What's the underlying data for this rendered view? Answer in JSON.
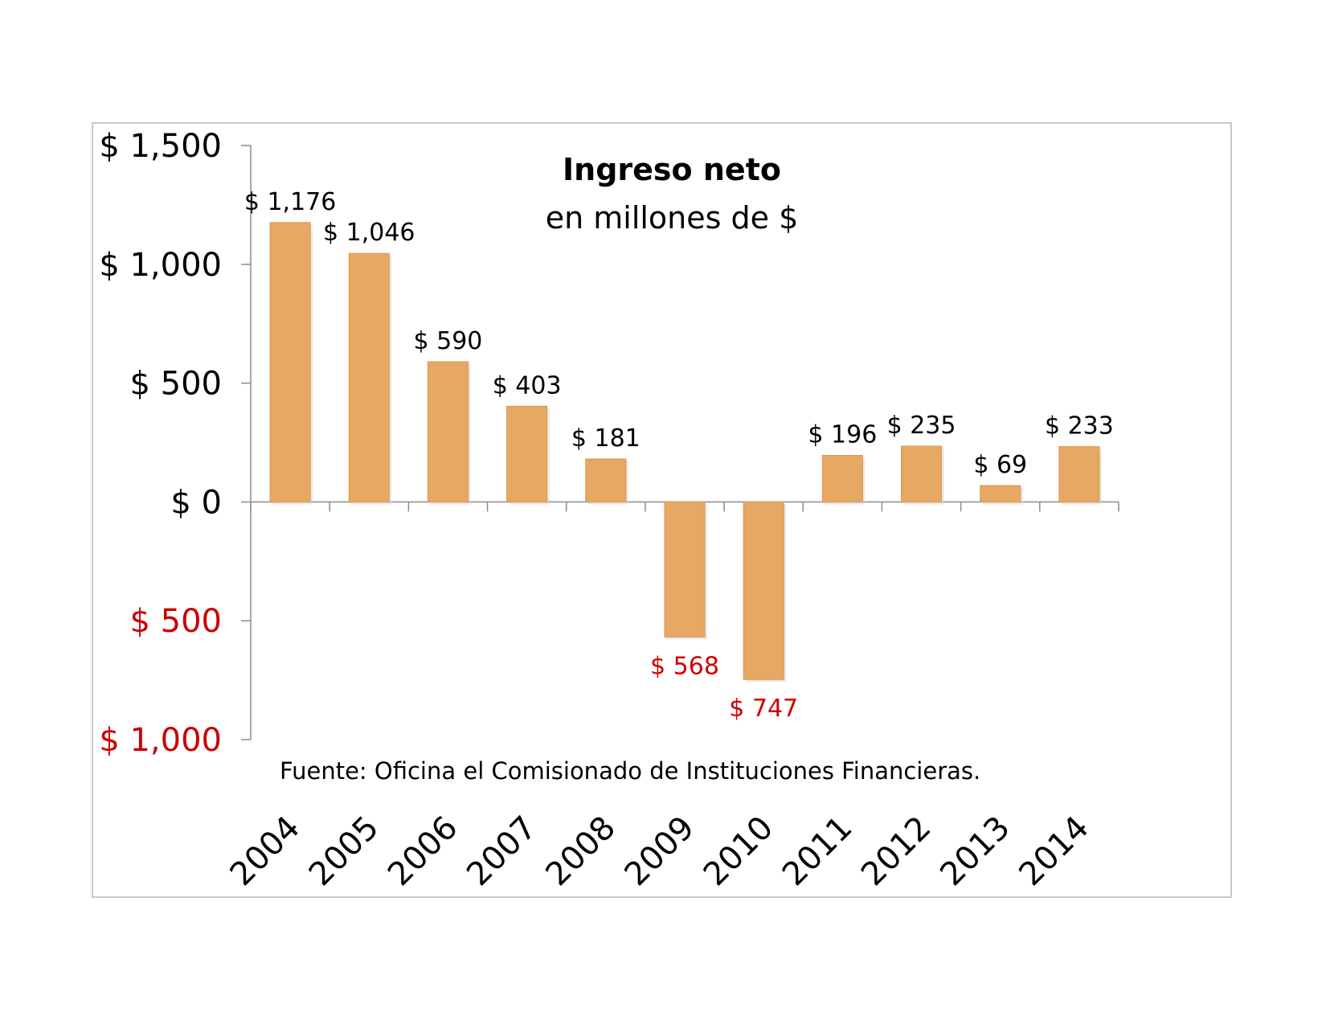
{
  "chart_data": {
    "type": "bar",
    "title": "Ingreso neto",
    "subtitle": "en millones de $",
    "xlabel": "",
    "ylabel": "",
    "categories": [
      "2004",
      "2005",
      "2006",
      "2007",
      "2008",
      "2009",
      "2010",
      "2011",
      "2012",
      "2013",
      "2014"
    ],
    "series": [
      {
        "values": [
          1176,
          1046,
          590,
          403,
          181,
          -568,
          -747,
          196,
          235,
          69,
          233
        ],
        "data_labels": [
          "$ 1,176",
          "$ 1,046",
          "$ 590",
          "$ 403",
          "$ 181",
          "$ 568",
          "$ 747",
          "$ 196",
          "$ 235",
          "$ 69",
          "$ 233"
        ]
      }
    ],
    "ylim": [
      -1000,
      1500
    ],
    "y_ticks": [
      {
        "value": 1500,
        "label": "$ 1,500"
      },
      {
        "value": 1000,
        "label": "$ 1,000"
      },
      {
        "value": 500,
        "label": "$ 500"
      },
      {
        "value": 0,
        "label": "$ 0"
      },
      {
        "value": -500,
        "label": "$ 500"
      },
      {
        "value": -1000,
        "label": "$ 1,000"
      }
    ],
    "grid": false,
    "legend": "none",
    "note": "Fuente: Oficina el Comisionado de Instituciones Financieras.",
    "colors": {
      "bar": "#E6A862",
      "bar_edge": "#D9964D",
      "negative_text": "#CC0000",
      "text": "#000000",
      "axis": "#8c8c8c"
    }
  }
}
